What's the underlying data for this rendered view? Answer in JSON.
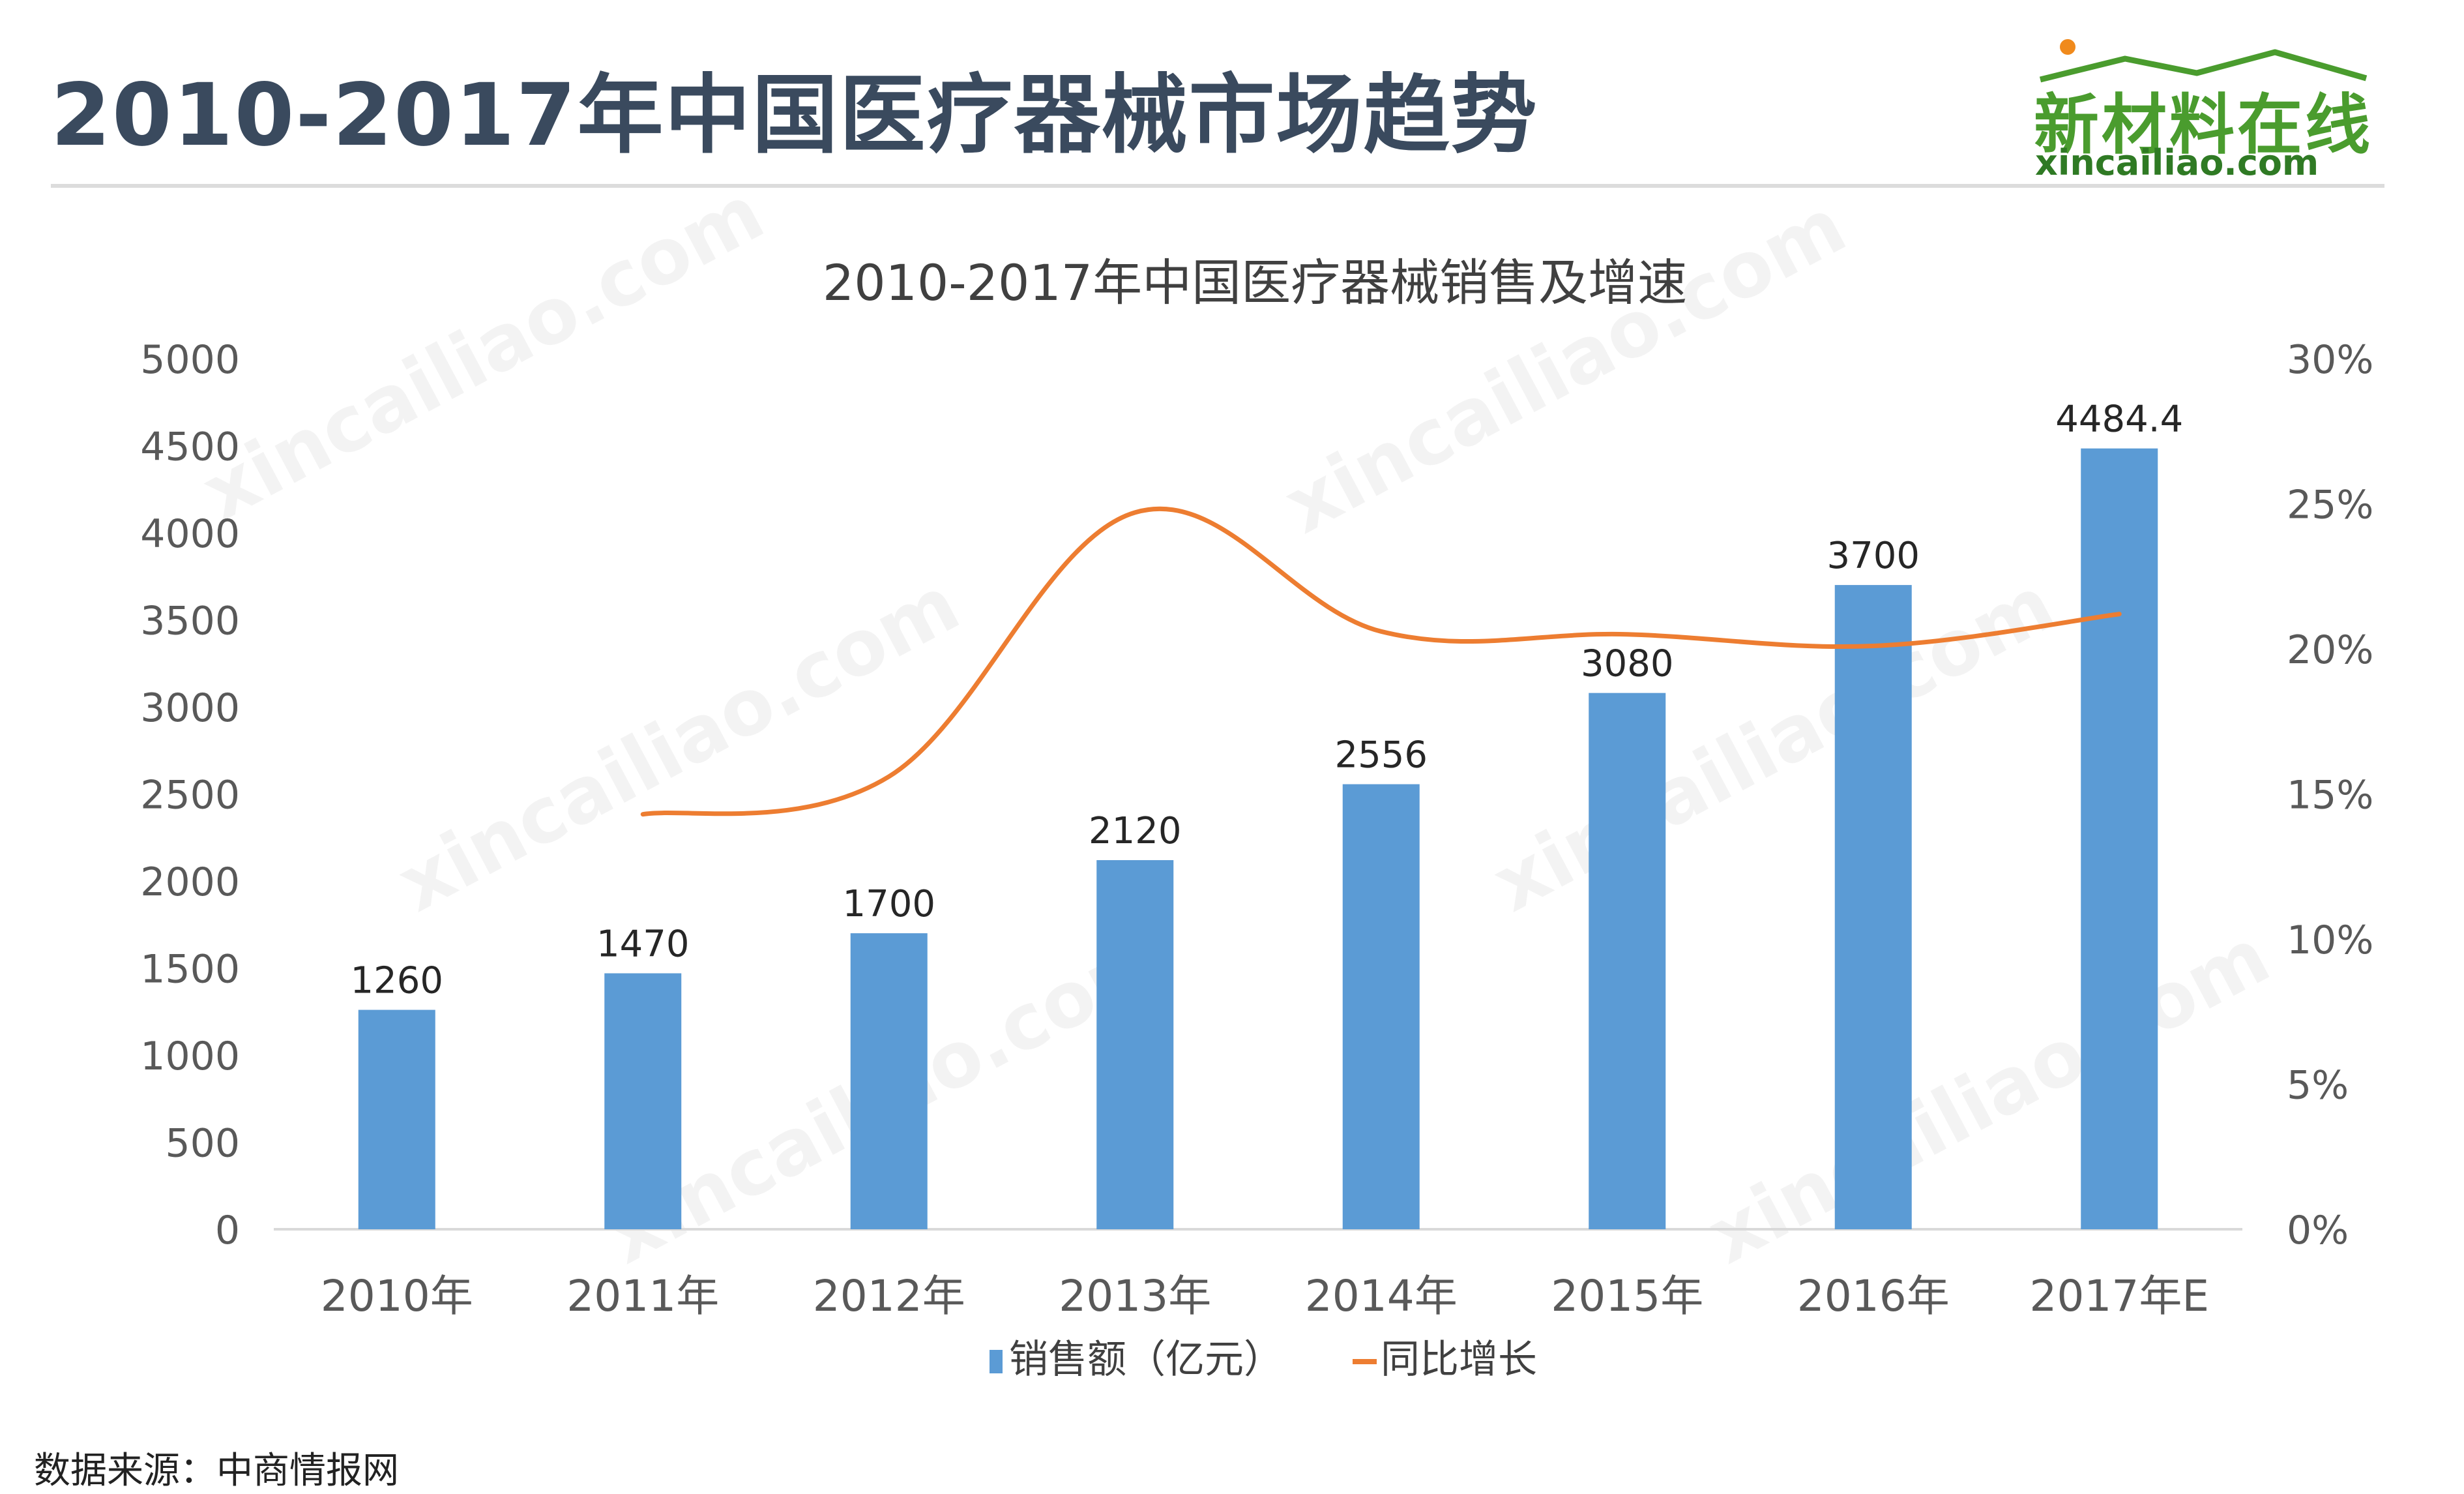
{
  "header": {
    "title": "2010-2017年中国医疗器械市场趋势",
    "logo_main": "新材料在线",
    "logo_sub": "xincailiao.com"
  },
  "watermark": "xincailiao.com",
  "colors": {
    "bar": "#5b9bd5",
    "line": "#ed7d31",
    "title": "#3a4a5e",
    "logo_green": "#4a9c2e",
    "logo_dot": "#f08a1c"
  },
  "chart_data": {
    "type": "bar",
    "title": "2010-2017年中国医疗器械销售及增速",
    "categories": [
      "2010年",
      "2011年",
      "2012年",
      "2013年",
      "2014年",
      "2015年",
      "2016年",
      "2017年E"
    ],
    "series": [
      {
        "name": "销售额（亿元）",
        "type": "bar",
        "axis": "left",
        "values": [
          1260,
          1470,
          1700,
          2120,
          2556,
          3080,
          3700,
          4484.4
        ],
        "labels": [
          "1260",
          "1470",
          "1700",
          "2120",
          "2556",
          "3080",
          "3700",
          "4484.4"
        ]
      },
      {
        "name": "同比增长",
        "type": "line",
        "axis": "right",
        "smooth": true,
        "values": [
          null,
          14.3,
          15.6,
          24.7,
          20.6,
          20.5,
          20.1,
          21.2
        ]
      }
    ],
    "y_left": {
      "ylim": [
        0,
        5000
      ],
      "ticks": [
        "0",
        "500",
        "1000",
        "1500",
        "2000",
        "2500",
        "3000",
        "3500",
        "4000",
        "4500",
        "5000"
      ]
    },
    "y_right": {
      "ylim": [
        0,
        30
      ],
      "ticks": [
        "0%",
        "5%",
        "10%",
        "15%",
        "20%",
        "25%",
        "30%"
      ]
    },
    "grid": false,
    "legend_position": "bottom"
  },
  "footer": {
    "source": "数据来源：中商情报网"
  }
}
